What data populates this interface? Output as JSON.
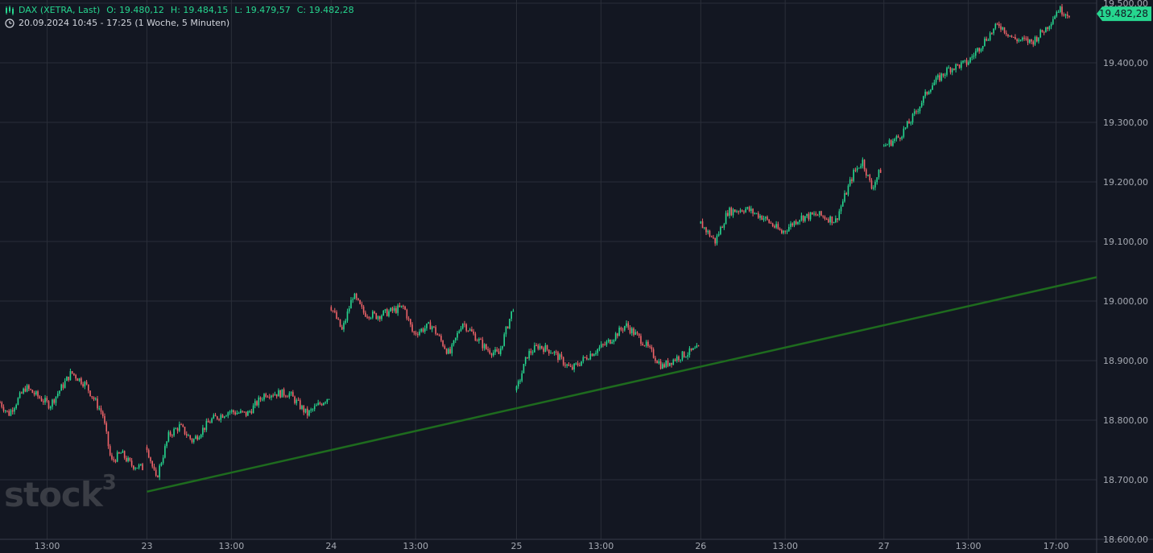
{
  "header": {
    "line1": "DAX (XETRA, Last)",
    "open_label": "O:",
    "open": "19.480,12",
    "high_label": "H:",
    "high": "19.484,15",
    "low_label": "L:",
    "low": "19.479,57",
    "close_label": "C:",
    "close": "19.482,28",
    "line2": "20.09.2024 10:45 - 17:25  (1 Woche, 5 Minuten)"
  },
  "watermark": {
    "text": "stock",
    "sup": "3"
  },
  "colors": {
    "background": "#131722",
    "grid": "#2a2e39",
    "up": "#26d68f",
    "down": "#f06469",
    "trendline": "#1e6b1e",
    "axis_text": "#a6aab3",
    "price_tag": "#26d68f"
  },
  "icons": {
    "chart": "candles-icon",
    "time": "clock-icon"
  },
  "chart_data": {
    "type": "candlestick",
    "title": "DAX (XETRA, Last)",
    "interval": "5 Minuten",
    "ylim": [
      18600,
      19500
    ],
    "y_ticks": [
      18600,
      18700,
      18800,
      18900,
      19000,
      19100,
      19200,
      19300,
      19400,
      19500
    ],
    "y_tick_labels": [
      "18.600,00",
      "18.700,00",
      "18.800,00",
      "18.900,00",
      "19.000,00",
      "19.100,00",
      "19.200,00",
      "19.300,00",
      "19.400,00",
      "19.500,00"
    ],
    "x_tick_labels": [
      "13:00",
      "23",
      "13:00",
      "24",
      "13:00",
      "25",
      "13:00",
      "26",
      "13:00",
      "27",
      "13:00",
      "17:00"
    ],
    "x_tick_fraction": [
      0.043,
      0.134,
      0.211,
      0.302,
      0.379,
      0.471,
      0.548,
      0.639,
      0.716,
      0.806,
      0.883,
      0.963
    ],
    "last_price": 19482.28,
    "last_price_label": "19.482,28",
    "sessions": [
      {
        "day": "20",
        "anchors": [
          [
            0.0,
            18830
          ],
          [
            0.06,
            18810
          ],
          [
            0.18,
            18855
          ],
          [
            0.35,
            18825
          ],
          [
            0.5,
            18880
          ],
          [
            0.6,
            18860
          ],
          [
            0.72,
            18810
          ],
          [
            0.78,
            18730
          ],
          [
            0.85,
            18745
          ],
          [
            0.92,
            18725
          ],
          [
            1.0,
            18720
          ]
        ]
      },
      {
        "day": "23",
        "anchors": [
          [
            0.0,
            18755
          ],
          [
            0.05,
            18700
          ],
          [
            0.12,
            18775
          ],
          [
            0.18,
            18790
          ],
          [
            0.25,
            18765
          ],
          [
            0.35,
            18800
          ],
          [
            0.45,
            18815
          ],
          [
            0.55,
            18810
          ],
          [
            0.65,
            18845
          ],
          [
            0.78,
            18845
          ],
          [
            0.88,
            18810
          ],
          [
            1.0,
            18840
          ]
        ]
      },
      {
        "day": "24",
        "anchors": [
          [
            0.0,
            18990
          ],
          [
            0.06,
            18950
          ],
          [
            0.12,
            19010
          ],
          [
            0.18,
            18980
          ],
          [
            0.25,
            18975
          ],
          [
            0.4,
            18990
          ],
          [
            0.45,
            18945
          ],
          [
            0.55,
            18960
          ],
          [
            0.65,
            18910
          ],
          [
            0.72,
            18965
          ],
          [
            0.85,
            18920
          ],
          [
            0.92,
            18910
          ],
          [
            1.0,
            18990
          ]
        ]
      },
      {
        "day": "25",
        "anchors": [
          [
            0.0,
            18850
          ],
          [
            0.06,
            18910
          ],
          [
            0.12,
            18925
          ],
          [
            0.2,
            18915
          ],
          [
            0.3,
            18885
          ],
          [
            0.4,
            18910
          ],
          [
            0.5,
            18930
          ],
          [
            0.6,
            18960
          ],
          [
            0.7,
            18930
          ],
          [
            0.8,
            18890
          ],
          [
            0.88,
            18905
          ],
          [
            1.0,
            18920
          ]
        ]
      },
      {
        "day": "26",
        "anchors": [
          [
            0.0,
            19130
          ],
          [
            0.08,
            19100
          ],
          [
            0.15,
            19150
          ],
          [
            0.25,
            19155
          ],
          [
            0.35,
            19140
          ],
          [
            0.45,
            19115
          ],
          [
            0.55,
            19140
          ],
          [
            0.65,
            19145
          ],
          [
            0.75,
            19135
          ],
          [
            0.85,
            19215
          ],
          [
            0.9,
            19235
          ],
          [
            0.95,
            19190
          ],
          [
            1.0,
            19220
          ]
        ]
      },
      {
        "day": "27",
        "anchors": [
          [
            0.0,
            19260
          ],
          [
            0.08,
            19275
          ],
          [
            0.15,
            19305
          ],
          [
            0.25,
            19360
          ],
          [
            0.35,
            19390
          ],
          [
            0.45,
            19400
          ],
          [
            0.55,
            19440
          ],
          [
            0.62,
            19465
          ],
          [
            0.7,
            19440
          ],
          [
            0.8,
            19435
          ],
          [
            0.88,
            19460
          ],
          [
            0.94,
            19490
          ],
          [
            1.0,
            19482
          ]
        ]
      }
    ],
    "trendline": {
      "from": [
        "23",
        18680
      ],
      "to": [
        "27 17:25",
        19040
      ]
    }
  }
}
